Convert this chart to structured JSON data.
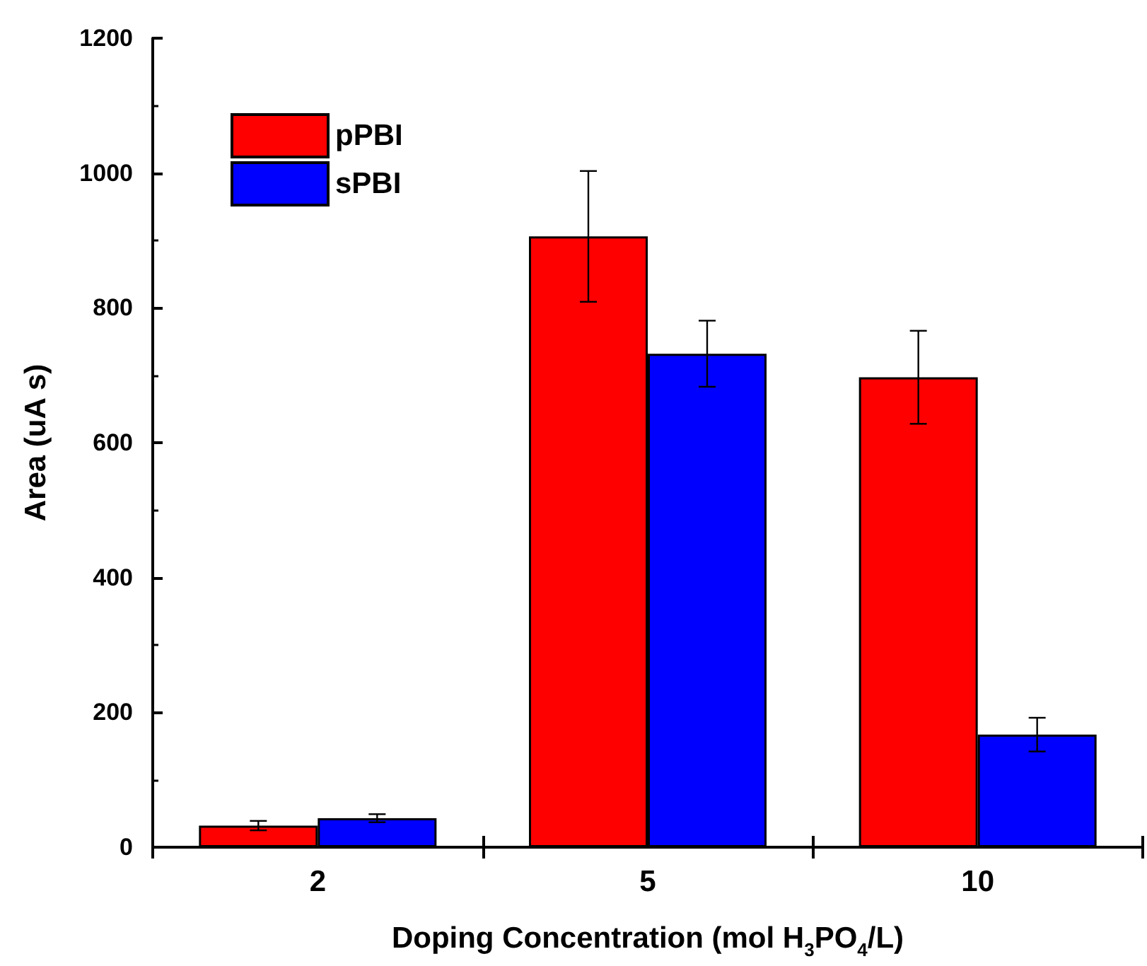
{
  "chart_data": {
    "type": "bar",
    "xlabel": "Doping Concentration (mol H$_{3}$PO$_{4}$/L)",
    "ylabel": "Area (uA s)",
    "categories": [
      "2",
      "5",
      "10"
    ],
    "series": [
      {
        "name": "pPBI",
        "color": "#ff0000",
        "values": [
          32,
          906,
          697
        ],
        "errors": [
          7,
          97,
          69
        ]
      },
      {
        "name": "sPBI",
        "color": "#0000ff",
        "values": [
          43,
          732,
          167
        ],
        "errors": [
          6,
          49,
          25
        ]
      }
    ],
    "ylim": [
      0,
      1200
    ],
    "yticks": [
      0,
      200,
      400,
      600,
      800,
      1000,
      1200
    ],
    "grid": false,
    "legend": "top left"
  }
}
